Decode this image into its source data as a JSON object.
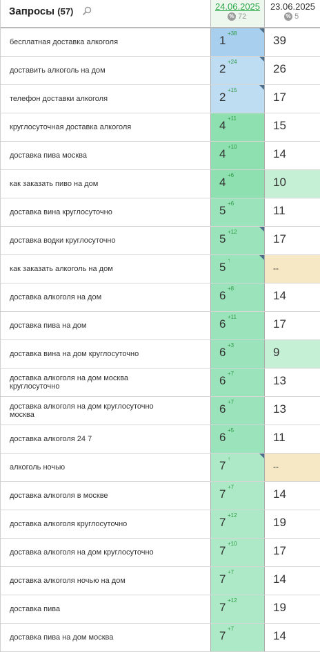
{
  "header": {
    "title": "Запросы",
    "count": "(57)",
    "date1": "24.06.2025",
    "date1_pct": "72",
    "date2": "23.06.2025",
    "date2_pct": "5",
    "pct_symbol": "%"
  },
  "colors": {
    "blue_strong": "#a8d0ee",
    "blue_light": "#bedcf2",
    "green_strong": "#8ee0b0",
    "green_mid": "#9be4bb",
    "green_light": "#ade9c6",
    "green_pale": "#c6f0d6",
    "yellow": "#f6e8c5"
  },
  "rows": [
    {
      "query": "бесплатная доставка алкоголя",
      "pos": "1",
      "delta": "+38",
      "flag": true,
      "bg": "blue_strong",
      "prev": "39",
      "prev_bg": ""
    },
    {
      "query": "доставить алкоголь на дом",
      "pos": "2",
      "delta": "+24",
      "flag": true,
      "bg": "blue_light",
      "prev": "26",
      "prev_bg": ""
    },
    {
      "query": "телефон доставки алкоголя",
      "pos": "2",
      "delta": "+15",
      "flag": true,
      "bg": "blue_light",
      "prev": "17",
      "prev_bg": ""
    },
    {
      "query": "круглосуточная доставка алкоголя",
      "pos": "4",
      "delta": "+11",
      "flag": false,
      "bg": "green_strong",
      "prev": "15",
      "prev_bg": ""
    },
    {
      "query": "доставка пива москва",
      "pos": "4",
      "delta": "+10",
      "flag": false,
      "bg": "green_strong",
      "prev": "14",
      "prev_bg": ""
    },
    {
      "query": "как заказать пиво на дом",
      "pos": "4",
      "delta": "+6",
      "flag": false,
      "bg": "green_strong",
      "prev": "10",
      "prev_bg": "green_pale"
    },
    {
      "query": "доставка вина круглосуточно",
      "pos": "5",
      "delta": "+6",
      "flag": false,
      "bg": "green_mid",
      "prev": "11",
      "prev_bg": ""
    },
    {
      "query": "доставка водки круглосуточно",
      "pos": "5",
      "delta": "+12",
      "flag": true,
      "bg": "green_mid",
      "prev": "17",
      "prev_bg": ""
    },
    {
      "query": "как заказать алкоголь на дом",
      "pos": "5",
      "delta": "↑",
      "flag": true,
      "bg": "green_mid",
      "prev": "--",
      "prev_bg": "yellow"
    },
    {
      "query": "доставка алкоголя на дом",
      "pos": "6",
      "delta": "+8",
      "flag": false,
      "bg": "green_mid",
      "prev": "14",
      "prev_bg": ""
    },
    {
      "query": "доставка пива на дом",
      "pos": "6",
      "delta": "+11",
      "flag": false,
      "bg": "green_mid",
      "prev": "17",
      "prev_bg": ""
    },
    {
      "query": "доставка вина на дом круглосуточно",
      "pos": "6",
      "delta": "+3",
      "flag": false,
      "bg": "green_mid",
      "prev": "9",
      "prev_bg": "green_pale"
    },
    {
      "query": "доставка алкоголя на дом москва круглосуточно",
      "pos": "6",
      "delta": "+7",
      "flag": false,
      "bg": "green_mid",
      "prev": "13",
      "prev_bg": ""
    },
    {
      "query": "доставка алкоголя на дом круглосуточно москва",
      "pos": "6",
      "delta": "+7",
      "flag": false,
      "bg": "green_mid",
      "prev": "13",
      "prev_bg": ""
    },
    {
      "query": "доставка алкоголя 24 7",
      "pos": "6",
      "delta": "+5",
      "flag": false,
      "bg": "green_mid",
      "prev": "11",
      "prev_bg": ""
    },
    {
      "query": "алкоголь ночью",
      "pos": "7",
      "delta": "↑",
      "flag": true,
      "bg": "green_light",
      "prev": "--",
      "prev_bg": "yellow"
    },
    {
      "query": "доставка алкоголя в москве",
      "pos": "7",
      "delta": "+7",
      "flag": false,
      "bg": "green_light",
      "prev": "14",
      "prev_bg": ""
    },
    {
      "query": "доставка алкоголя круглосуточно",
      "pos": "7",
      "delta": "+12",
      "flag": false,
      "bg": "green_light",
      "prev": "19",
      "prev_bg": ""
    },
    {
      "query": "доставка алкоголя на дом круглосуточно",
      "pos": "7",
      "delta": "+10",
      "flag": false,
      "bg": "green_light",
      "prev": "17",
      "prev_bg": ""
    },
    {
      "query": "доставка алкоголя ночью на дом",
      "pos": "7",
      "delta": "+7",
      "flag": false,
      "bg": "green_light",
      "prev": "14",
      "prev_bg": ""
    },
    {
      "query": "доставка пива",
      "pos": "7",
      "delta": "+12",
      "flag": false,
      "bg": "green_light",
      "prev": "19",
      "prev_bg": ""
    },
    {
      "query": "доставка пива на дом москва",
      "pos": "7",
      "delta": "+7",
      "flag": false,
      "bg": "green_light",
      "prev": "14",
      "prev_bg": ""
    }
  ]
}
